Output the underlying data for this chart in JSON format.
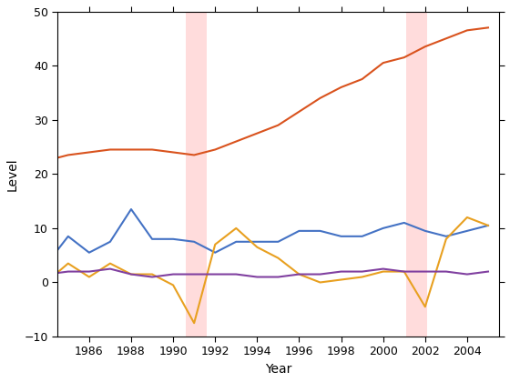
{
  "xlabel": "Year",
  "ylabel": "Level",
  "xlim": [
    1984.5,
    2005.5
  ],
  "ylim": [
    -10,
    50
  ],
  "xticks": [
    1986,
    1988,
    1990,
    1992,
    1994,
    1996,
    1998,
    2000,
    2002,
    2004
  ],
  "yticks": [
    -10,
    0,
    10,
    20,
    30,
    40,
    50
  ],
  "shaded_bands": [
    {
      "xmin": 1990.6,
      "xmax": 1991.6,
      "color": "#ffb3b3",
      "alpha": 0.45
    },
    {
      "xmin": 2001.1,
      "xmax": 2002.1,
      "color": "#ffb3b3",
      "alpha": 0.45
    }
  ],
  "lines": {
    "orange": {
      "color": "#d9531e",
      "years": [
        1984,
        1985,
        1986,
        1987,
        1988,
        1989,
        1990,
        1991,
        1992,
        1993,
        1994,
        1995,
        1996,
        1997,
        1998,
        1999,
        2000,
        2001,
        2002,
        2003,
        2004,
        2005
      ],
      "values": [
        22.5,
        23.5,
        24.0,
        24.5,
        24.5,
        24.5,
        24.0,
        23.5,
        24.5,
        26.0,
        27.5,
        29.0,
        31.5,
        34.0,
        36.0,
        37.5,
        40.5,
        41.5,
        43.5,
        45.0,
        46.5,
        47.0
      ]
    },
    "blue": {
      "color": "#4472c4",
      "years": [
        1984,
        1985,
        1986,
        1987,
        1988,
        1989,
        1990,
        1991,
        1992,
        1993,
        1994,
        1995,
        1996,
        1997,
        1998,
        1999,
        2000,
        2001,
        2002,
        2003,
        2004,
        2005
      ],
      "values": [
        3.5,
        8.5,
        5.5,
        7.5,
        13.5,
        8.0,
        8.0,
        7.5,
        5.5,
        7.5,
        7.5,
        7.5,
        9.5,
        9.5,
        8.5,
        8.5,
        10.0,
        11.0,
        9.5,
        8.5,
        9.5,
        10.5
      ]
    },
    "gold": {
      "color": "#e8a020",
      "years": [
        1984,
        1985,
        1986,
        1987,
        1988,
        1989,
        1990,
        1991,
        1992,
        1993,
        1994,
        1995,
        1996,
        1997,
        1998,
        1999,
        2000,
        2001,
        2002,
        2003,
        2004,
        2005
      ],
      "values": [
        0.2,
        3.5,
        1.0,
        3.5,
        1.5,
        1.5,
        -0.5,
        -7.5,
        7.0,
        10.0,
        6.5,
        4.5,
        1.5,
        0.0,
        0.5,
        1.0,
        2.0,
        2.0,
        -4.5,
        8.0,
        12.0,
        10.5
      ]
    },
    "purple": {
      "color": "#8040a0",
      "years": [
        1984,
        1985,
        1986,
        1987,
        1988,
        1989,
        1990,
        1991,
        1992,
        1993,
        1994,
        1995,
        1996,
        1997,
        1998,
        1999,
        2000,
        2001,
        2002,
        2003,
        2004,
        2005
      ],
      "values": [
        1.5,
        2.0,
        2.0,
        2.5,
        1.5,
        1.0,
        1.5,
        1.5,
        1.5,
        1.5,
        1.0,
        1.0,
        1.5,
        1.5,
        2.0,
        2.0,
        2.5,
        2.0,
        2.0,
        2.0,
        1.5,
        2.0
      ]
    }
  },
  "figsize": [
    5.6,
    4.2
  ],
  "dpi": 100,
  "xlabel_fontsize": 10,
  "ylabel_fontsize": 10,
  "tick_fontsize": 9,
  "linewidth": 1.5
}
